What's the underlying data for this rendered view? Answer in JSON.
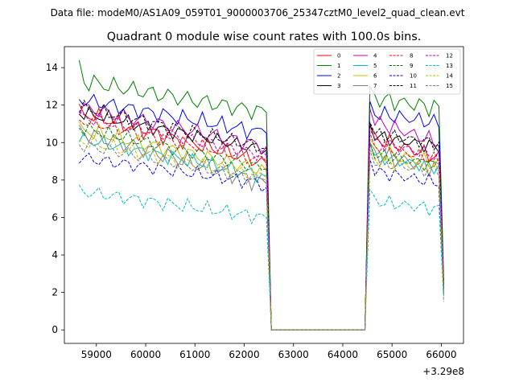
{
  "suptitle": "Data file: modeM0/AS1A09_059T01_9000003706_25347cztM0_level2_quad_clean.evt",
  "chart_data": {
    "type": "line",
    "title": "Quadrant 0 module wise count rates with 100.0s bins.",
    "xlabel": "",
    "ylabel": "",
    "x_offset_label": "+3.29e8",
    "xlim": [
      58350,
      66450
    ],
    "ylim": [
      -0.72,
      15.12
    ],
    "xticks": [
      59000,
      60000,
      61000,
      62000,
      63000,
      64000,
      65000,
      66000
    ],
    "yticks": [
      0,
      2,
      4,
      6,
      8,
      10,
      12,
      14
    ],
    "x_segments": [
      {
        "start": 58650,
        "end": 62450,
        "step": 100
      },
      {
        "start": 62550,
        "end": 64450,
        "step": 100
      },
      {
        "start": 64550,
        "end": 66050,
        "step": 100
      }
    ],
    "legend_position": "top-right",
    "series": [
      {
        "name": "0",
        "color": "#ff0000",
        "dash": "solid",
        "base": 11.6,
        "end1": 8.9,
        "base2": 10.3,
        "end2": 9.1,
        "drop": 8.9,
        "last": 2.0,
        "amp": 0.35,
        "phase": 1
      },
      {
        "name": "1",
        "color": "#008000",
        "dash": "solid",
        "base": 13.3,
        "end1": 11.6,
        "base2": 12.4,
        "end2": 11.8,
        "drop": 11.6,
        "last": 2.6,
        "amp": 0.4,
        "phase": 2,
        "first": 14.4
      },
      {
        "name": "2",
        "color": "#0000ff",
        "dash": "solid",
        "base": 12.3,
        "end1": 10.5,
        "base2": 11.6,
        "end2": 11.0,
        "drop": 10.5,
        "last": 2.3,
        "amp": 0.35,
        "phase": 3
      },
      {
        "name": "3",
        "color": "#000000",
        "dash": "solid",
        "base": 11.6,
        "end1": 9.6,
        "base2": 10.4,
        "end2": 9.7,
        "drop": 9.6,
        "last": 2.1,
        "amp": 0.3,
        "phase": 4
      },
      {
        "name": "4",
        "color": "#bf00bf",
        "dash": "solid",
        "base": 11.9,
        "end1": 9.8,
        "base2": 11.2,
        "end2": 9.9,
        "drop": 9.8,
        "last": 2.2,
        "amp": 0.35,
        "phase": 5
      },
      {
        "name": "5",
        "color": "#00bfbf",
        "dash": "solid",
        "base": 10.2,
        "end1": 8.2,
        "base2": 9.3,
        "end2": 8.6,
        "drop": 8.2,
        "last": 1.9,
        "amp": 0.3,
        "phase": 6
      },
      {
        "name": "6",
        "color": "#bfbf00",
        "dash": "solid",
        "base": 10.7,
        "end1": 8.5,
        "base2": 9.6,
        "end2": 8.8,
        "drop": 8.5,
        "last": 2.0,
        "amp": 0.35,
        "phase": 7
      },
      {
        "name": "7",
        "color": "#808080",
        "dash": "solid",
        "base": 10.6,
        "end1": 7.8,
        "base2": 9.4,
        "end2": 8.6,
        "drop": 7.8,
        "last": 1.9,
        "amp": 0.4,
        "phase": 8
      },
      {
        "name": "8",
        "color": "#ff0000",
        "dash": "dashed",
        "base": 11.2,
        "end1": 9.0,
        "base2": 9.9,
        "end2": 9.0,
        "drop": 9.0,
        "last": 2.0,
        "amp": 0.3,
        "phase": 9
      },
      {
        "name": "9",
        "color": "#008000",
        "dash": "dashed",
        "base": 10.8,
        "end1": 8.6,
        "base2": 9.4,
        "end2": 8.7,
        "drop": 8.6,
        "last": 1.9,
        "amp": 0.3,
        "phase": 10
      },
      {
        "name": "10",
        "color": "#0000ff",
        "dash": "dashed",
        "base": 9.2,
        "end1": 7.8,
        "base2": 8.5,
        "end2": 7.8,
        "drop": 7.6,
        "last": 1.8,
        "amp": 0.3,
        "phase": 11
      },
      {
        "name": "11",
        "color": "#000000",
        "dash": "dashed",
        "base": 11.9,
        "end1": 9.7,
        "base2": 10.5,
        "end2": 9.9,
        "drop": 9.7,
        "last": 2.1,
        "amp": 0.3,
        "phase": 12
      },
      {
        "name": "12",
        "color": "#bf00bf",
        "dash": "dashed",
        "base": 11.4,
        "end1": 9.3,
        "base2": 10.1,
        "end2": 9.2,
        "drop": 9.3,
        "last": 2.0,
        "amp": 0.3,
        "phase": 13
      },
      {
        "name": "13",
        "color": "#00bfbf",
        "dash": "dashed",
        "base": 7.4,
        "end1": 6.0,
        "base2": 6.9,
        "end2": 6.4,
        "drop": 6.0,
        "last": 1.5,
        "amp": 0.3,
        "phase": 14
      },
      {
        "name": "14",
        "color": "#bfbf00",
        "dash": "dashed",
        "base": 10.1,
        "end1": 8.1,
        "base2": 9.1,
        "end2": 8.5,
        "drop": 8.1,
        "last": 1.8,
        "amp": 0.3,
        "phase": 15
      },
      {
        "name": "15",
        "color": "#808080",
        "dash": "dashed",
        "base": 9.9,
        "end1": 8.0,
        "base2": 9.0,
        "end2": 8.4,
        "drop": 8.0,
        "last": 1.8,
        "amp": 0.3,
        "phase": 16
      }
    ]
  }
}
